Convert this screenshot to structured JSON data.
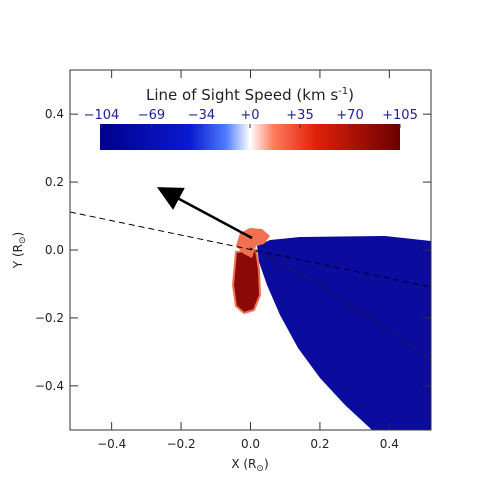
{
  "chart_data": {
    "type": "image",
    "title": [
      "Line of Sight Speed (km s",
      "-1",
      ")"
    ],
    "xlabel": [
      "X (R",
      "⊙",
      ")"
    ],
    "ylabel": [
      "Y (R",
      "⊙",
      ")"
    ],
    "xlim": [
      -0.52,
      0.52
    ],
    "ylim": [
      -0.53,
      0.53
    ],
    "xticks": [
      {
        "value": -0.4,
        "label": "−0.4"
      },
      {
        "value": -0.2,
        "label": "−0.2"
      },
      {
        "value": 0,
        "label": "0.0"
      },
      0.2,
      0.4
    ],
    "yticks": [
      {
        "value": -0.4,
        "label": "−0.4"
      },
      {
        "value": -0.2,
        "label": "−0.2"
      },
      {
        "value": 0,
        "label": "0.0"
      },
      0.2,
      0.4
    ],
    "clim": [
      -105,
      105
    ],
    "cticks": [
      {
        "value": -104,
        "label": "−104"
      },
      {
        "value": -69,
        "label": "−69"
      },
      {
        "value": -34,
        "label": "−34"
      },
      {
        "value": 0,
        "label": "+0"
      },
      {
        "value": 35,
        "label": "+35"
      },
      {
        "value": 70,
        "label": "+70"
      },
      {
        "value": 105,
        "label": "+105"
      }
    ]
  }
}
